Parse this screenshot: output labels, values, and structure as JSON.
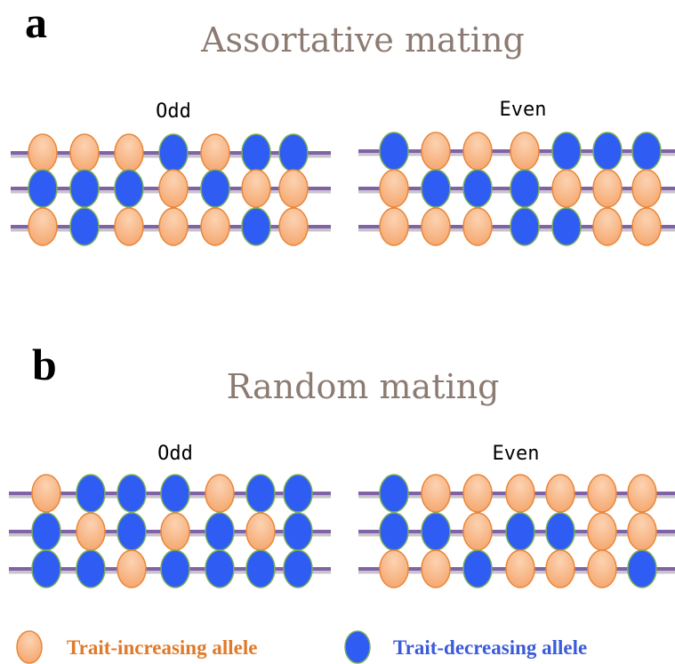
{
  "panels": [
    {
      "label": "a",
      "title": "Assortative mating",
      "groups": [
        {
          "label": "Odd"
        },
        {
          "label": "Even"
        }
      ]
    },
    {
      "label": "b",
      "title": "Random mating",
      "groups": [
        {
          "label": "Odd"
        },
        {
          "label": "Even"
        }
      ]
    }
  ],
  "legend": [
    {
      "label": "Trait-increasing allele"
    },
    {
      "label": "Trait-decreasing allele"
    }
  ]
}
